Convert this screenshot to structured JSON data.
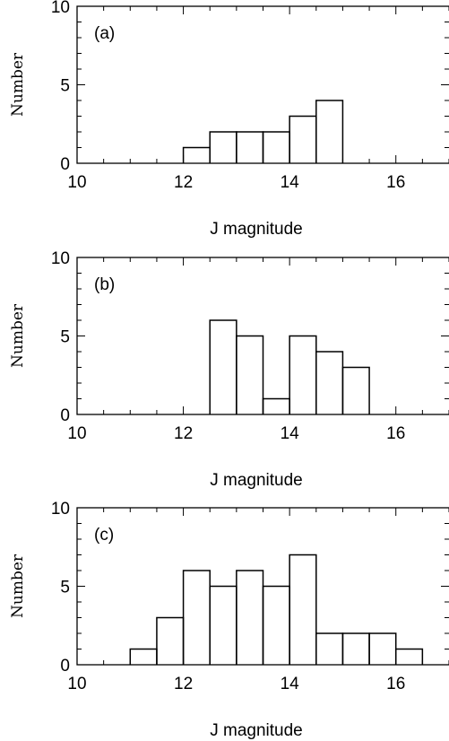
{
  "chart_data": [
    {
      "type": "histogram",
      "panel_label": "(a)",
      "xlabel": "J magnitude",
      "ylabel": "Number",
      "xlim": [
        10,
        17
      ],
      "ylim": [
        0,
        10
      ],
      "xticks": [
        10,
        12,
        14,
        16
      ],
      "yticks": [
        0,
        5,
        10
      ],
      "bins": [
        {
          "x0": 12.0,
          "x1": 12.5,
          "count": 1
        },
        {
          "x0": 12.5,
          "x1": 13.0,
          "count": 2
        },
        {
          "x0": 13.0,
          "x1": 13.5,
          "count": 2
        },
        {
          "x0": 13.5,
          "x1": 14.0,
          "count": 2
        },
        {
          "x0": 14.0,
          "x1": 14.5,
          "count": 3
        },
        {
          "x0": 14.5,
          "x1": 15.0,
          "count": 4
        }
      ]
    },
    {
      "type": "histogram",
      "panel_label": "(b)",
      "xlabel": "J magnitude",
      "ylabel": "Number",
      "xlim": [
        10,
        17
      ],
      "ylim": [
        0,
        10
      ],
      "xticks": [
        10,
        12,
        14,
        16
      ],
      "yticks": [
        0,
        5,
        10
      ],
      "bins": [
        {
          "x0": 12.5,
          "x1": 13.0,
          "count": 6
        },
        {
          "x0": 13.0,
          "x1": 13.5,
          "count": 5
        },
        {
          "x0": 13.5,
          "x1": 14.0,
          "count": 1
        },
        {
          "x0": 14.0,
          "x1": 14.5,
          "count": 5
        },
        {
          "x0": 14.5,
          "x1": 15.0,
          "count": 4
        },
        {
          "x0": 15.0,
          "x1": 15.5,
          "count": 3
        }
      ]
    },
    {
      "type": "histogram",
      "panel_label": "(c)",
      "xlabel": "J magnitude",
      "ylabel": "Number",
      "xlim": [
        10,
        17
      ],
      "ylim": [
        0,
        10
      ],
      "xticks": [
        10,
        12,
        14,
        16
      ],
      "yticks": [
        0,
        5,
        10
      ],
      "bins": [
        {
          "x0": 11.0,
          "x1": 11.5,
          "count": 1
        },
        {
          "x0": 11.5,
          "x1": 12.0,
          "count": 3
        },
        {
          "x0": 12.0,
          "x1": 12.5,
          "count": 6
        },
        {
          "x0": 12.5,
          "x1": 13.0,
          "count": 5
        },
        {
          "x0": 13.0,
          "x1": 13.5,
          "count": 6
        },
        {
          "x0": 13.5,
          "x1": 14.0,
          "count": 5
        },
        {
          "x0": 14.0,
          "x1": 14.5,
          "count": 7
        },
        {
          "x0": 14.5,
          "x1": 15.0,
          "count": 2
        },
        {
          "x0": 15.0,
          "x1": 15.5,
          "count": 2
        },
        {
          "x0": 15.5,
          "x1": 16.0,
          "count": 2
        },
        {
          "x0": 16.0,
          "x1": 16.5,
          "count": 1
        }
      ]
    }
  ]
}
